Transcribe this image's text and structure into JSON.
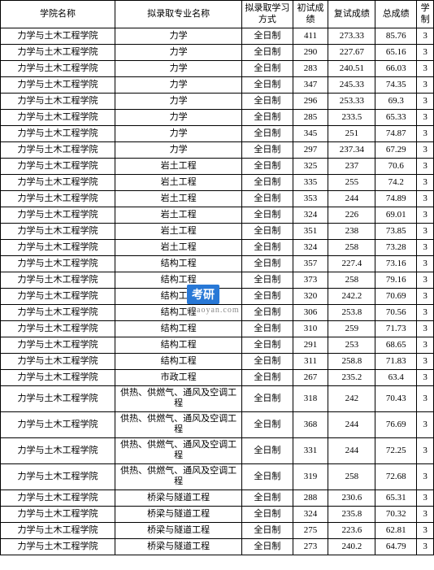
{
  "table": {
    "headers": {
      "school": "学院名称",
      "major": "拟录取专业名称",
      "mode": "拟录取学习方式",
      "prelim": "初试成绩",
      "retest": "复试成绩",
      "total": "总成绩",
      "duration": "学制"
    },
    "rows": [
      {
        "school": "力学与土木工程学院",
        "major": "力学",
        "mode": "全日制",
        "prelim": "411",
        "retest": "273.33",
        "total": "85.76",
        "duration": "3",
        "multiline": false
      },
      {
        "school": "力学与土木工程学院",
        "major": "力学",
        "mode": "全日制",
        "prelim": "290",
        "retest": "227.67",
        "total": "65.16",
        "duration": "3",
        "multiline": false
      },
      {
        "school": "力学与土木工程学院",
        "major": "力学",
        "mode": "全日制",
        "prelim": "283",
        "retest": "240.51",
        "total": "66.03",
        "duration": "3",
        "multiline": false
      },
      {
        "school": "力学与土木工程学院",
        "major": "力学",
        "mode": "全日制",
        "prelim": "347",
        "retest": "245.33",
        "total": "74.35",
        "duration": "3",
        "multiline": false
      },
      {
        "school": "力学与土木工程学院",
        "major": "力学",
        "mode": "全日制",
        "prelim": "296",
        "retest": "253.33",
        "total": "69.3",
        "duration": "3",
        "multiline": false
      },
      {
        "school": "力学与土木工程学院",
        "major": "力学",
        "mode": "全日制",
        "prelim": "285",
        "retest": "233.5",
        "total": "65.33",
        "duration": "3",
        "multiline": false
      },
      {
        "school": "力学与土木工程学院",
        "major": "力学",
        "mode": "全日制",
        "prelim": "345",
        "retest": "251",
        "total": "74.87",
        "duration": "3",
        "multiline": false
      },
      {
        "school": "力学与土木工程学院",
        "major": "力学",
        "mode": "全日制",
        "prelim": "297",
        "retest": "237.34",
        "total": "67.29",
        "duration": "3",
        "multiline": false
      },
      {
        "school": "力学与土木工程学院",
        "major": "岩土工程",
        "mode": "全日制",
        "prelim": "325",
        "retest": "237",
        "total": "70.6",
        "duration": "3",
        "multiline": false
      },
      {
        "school": "力学与土木工程学院",
        "major": "岩土工程",
        "mode": "全日制",
        "prelim": "335",
        "retest": "255",
        "total": "74.2",
        "duration": "3",
        "multiline": false
      },
      {
        "school": "力学与土木工程学院",
        "major": "岩土工程",
        "mode": "全日制",
        "prelim": "353",
        "retest": "244",
        "total": "74.89",
        "duration": "3",
        "multiline": false
      },
      {
        "school": "力学与土木工程学院",
        "major": "岩土工程",
        "mode": "全日制",
        "prelim": "324",
        "retest": "226",
        "total": "69.01",
        "duration": "3",
        "multiline": false
      },
      {
        "school": "力学与土木工程学院",
        "major": "岩土工程",
        "mode": "全日制",
        "prelim": "351",
        "retest": "238",
        "total": "73.85",
        "duration": "3",
        "multiline": false
      },
      {
        "school": "力学与土木工程学院",
        "major": "岩土工程",
        "mode": "全日制",
        "prelim": "324",
        "retest": "258",
        "total": "73.28",
        "duration": "3",
        "multiline": false
      },
      {
        "school": "力学与土木工程学院",
        "major": "结构工程",
        "mode": "全日制",
        "prelim": "357",
        "retest": "227.4",
        "total": "73.16",
        "duration": "3",
        "multiline": false
      },
      {
        "school": "力学与土木工程学院",
        "major": "结构工程",
        "mode": "全日制",
        "prelim": "373",
        "retest": "258",
        "total": "79.16",
        "duration": "3",
        "multiline": false
      },
      {
        "school": "力学与土木工程学院",
        "major": "结构工程",
        "mode": "全日制",
        "prelim": "320",
        "retest": "242.2",
        "total": "70.69",
        "duration": "3",
        "multiline": false
      },
      {
        "school": "力学与土木工程学院",
        "major": "结构工程",
        "mode": "全日制",
        "prelim": "306",
        "retest": "253.8",
        "total": "70.56",
        "duration": "3",
        "multiline": false
      },
      {
        "school": "力学与土木工程学院",
        "major": "结构工程",
        "mode": "全日制",
        "prelim": "310",
        "retest": "259",
        "total": "71.73",
        "duration": "3",
        "multiline": false
      },
      {
        "school": "力学与土木工程学院",
        "major": "结构工程",
        "mode": "全日制",
        "prelim": "291",
        "retest": "253",
        "total": "68.65",
        "duration": "3",
        "multiline": false
      },
      {
        "school": "力学与土木工程学院",
        "major": "结构工程",
        "mode": "全日制",
        "prelim": "311",
        "retest": "258.8",
        "total": "71.83",
        "duration": "3",
        "multiline": false
      },
      {
        "school": "力学与土木工程学院",
        "major": "市政工程",
        "mode": "全日制",
        "prelim": "267",
        "retest": "235.2",
        "total": "63.4",
        "duration": "3",
        "multiline": false
      },
      {
        "school": "力学与土木工程学院",
        "major": "供热、供燃气、通风及空调工程",
        "mode": "全日制",
        "prelim": "318",
        "retest": "242",
        "total": "70.43",
        "duration": "3",
        "multiline": true
      },
      {
        "school": "力学与土木工程学院",
        "major": "供热、供燃气、通风及空调工程",
        "mode": "全日制",
        "prelim": "368",
        "retest": "244",
        "total": "76.69",
        "duration": "3",
        "multiline": true
      },
      {
        "school": "力学与土木工程学院",
        "major": "供热、供燃气、通风及空调工程",
        "mode": "全日制",
        "prelim": "331",
        "retest": "244",
        "total": "72.25",
        "duration": "3",
        "multiline": true
      },
      {
        "school": "力学与土木工程学院",
        "major": "供热、供燃气、通风及空调工程",
        "mode": "全日制",
        "prelim": "319",
        "retest": "258",
        "total": "72.68",
        "duration": "3",
        "multiline": true
      },
      {
        "school": "力学与土木工程学院",
        "major": "桥梁与隧道工程",
        "mode": "全日制",
        "prelim": "288",
        "retest": "230.6",
        "total": "65.31",
        "duration": "3",
        "multiline": false
      },
      {
        "school": "力学与土木工程学院",
        "major": "桥梁与隧道工程",
        "mode": "全日制",
        "prelim": "324",
        "retest": "235.8",
        "total": "70.32",
        "duration": "3",
        "multiline": false
      },
      {
        "school": "力学与土木工程学院",
        "major": "桥梁与隧道工程",
        "mode": "全日制",
        "prelim": "275",
        "retest": "223.6",
        "total": "62.81",
        "duration": "3",
        "multiline": false
      },
      {
        "school": "力学与土木工程学院",
        "major": "桥梁与隧道工程",
        "mode": "全日制",
        "prelim": "273",
        "retest": "240.2",
        "total": "64.79",
        "duration": "3",
        "multiline": false
      }
    ]
  },
  "watermark": {
    "box_text": "考研",
    "sub_text": "okaoyan.com"
  },
  "styling": {
    "border_color": "#000000",
    "background_color": "#ffffff",
    "font_family": "SimSun",
    "cell_font_size": 11,
    "header_font_size": 11,
    "watermark_bg": "#2878d6",
    "watermark_color": "#ffffff",
    "watermark_sub_color": "#888888",
    "col_widths": {
      "school": 122,
      "major": 135,
      "mode": 54,
      "prelim": 38,
      "retest": 50,
      "total": 44,
      "duration": 18
    }
  }
}
